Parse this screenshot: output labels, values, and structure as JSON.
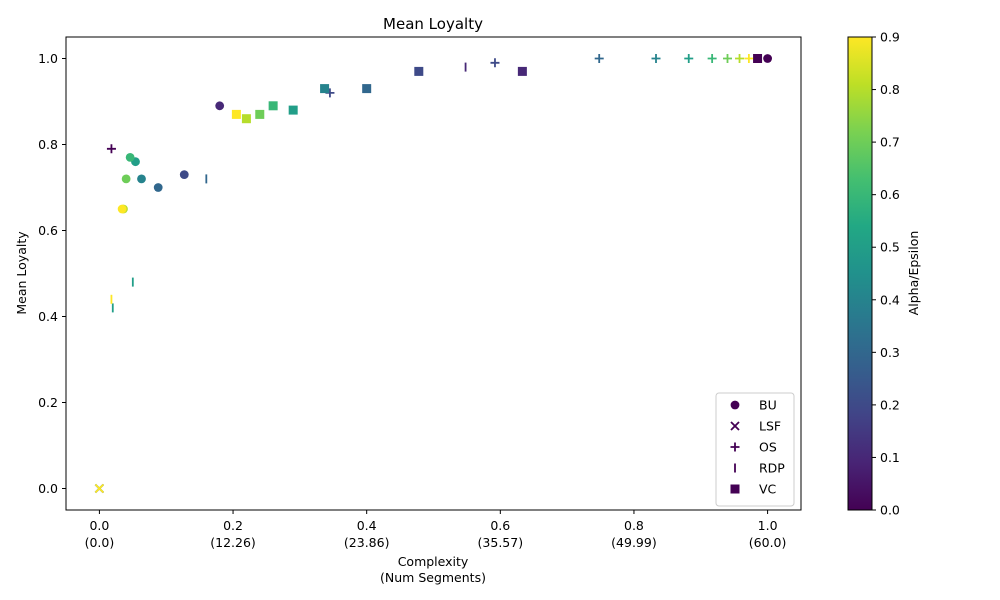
{
  "chart_data": {
    "type": "scatter",
    "title": "Mean Loyalty",
    "xlabel_line1": "Complexity",
    "xlabel_line2": "(Num Segments)",
    "ylabel": "Mean Loyalty",
    "xlim": [
      -0.05,
      1.05
    ],
    "ylim": [
      -0.05,
      1.05
    ],
    "xticks": [
      {
        "value": 0.0,
        "label": "0.0",
        "sub": "(0.0)"
      },
      {
        "value": 0.2,
        "label": "0.2",
        "sub": "(12.26)"
      },
      {
        "value": 0.4,
        "label": "0.4",
        "sub": "(23.86)"
      },
      {
        "value": 0.6,
        "label": "0.6",
        "sub": "(35.57)"
      },
      {
        "value": 0.8,
        "label": "0.8",
        "sub": "(49.99)"
      },
      {
        "value": 1.0,
        "label": "1.0",
        "sub": "(60.0)"
      }
    ],
    "yticks": [
      {
        "value": 0.0,
        "label": "0.0"
      },
      {
        "value": 0.2,
        "label": "0.2"
      },
      {
        "value": 0.4,
        "label": "0.4"
      },
      {
        "value": 0.6,
        "label": "0.6"
      },
      {
        "value": 0.8,
        "label": "0.8"
      },
      {
        "value": 1.0,
        "label": "1.0"
      }
    ],
    "grid": false,
    "legend_position": "lower-right",
    "colormap": "viridis",
    "colorbar": {
      "label": "Alpha/Epsilon",
      "range": [
        0.0,
        0.9
      ],
      "ticks": [
        {
          "value": 0.0,
          "label": "0.0"
        },
        {
          "value": 0.1,
          "label": "0.1"
        },
        {
          "value": 0.2,
          "label": "0.2"
        },
        {
          "value": 0.3,
          "label": "0.3"
        },
        {
          "value": 0.4,
          "label": "0.4"
        },
        {
          "value": 0.5,
          "label": "0.5"
        },
        {
          "value": 0.6,
          "label": "0.6"
        },
        {
          "value": 0.7,
          "label": "0.7"
        },
        {
          "value": 0.8,
          "label": "0.8"
        },
        {
          "value": 0.9,
          "label": "0.9"
        }
      ]
    },
    "series": [
      {
        "name": "BU",
        "marker": "circle",
        "points": [
          {
            "x": 1.0,
            "y": 1.0,
            "c": 0.0
          },
          {
            "x": 0.18,
            "y": 0.89,
            "c": 0.1
          },
          {
            "x": 0.127,
            "y": 0.73,
            "c": 0.2
          },
          {
            "x": 0.088,
            "y": 0.7,
            "c": 0.3
          },
          {
            "x": 0.063,
            "y": 0.72,
            "c": 0.4
          },
          {
            "x": 0.054,
            "y": 0.76,
            "c": 0.5
          },
          {
            "x": 0.046,
            "y": 0.77,
            "c": 0.6
          },
          {
            "x": 0.04,
            "y": 0.72,
            "c": 0.7
          },
          {
            "x": 0.036,
            "y": 0.65,
            "c": 0.8
          },
          {
            "x": 0.034,
            "y": 0.65,
            "c": 0.9
          }
        ]
      },
      {
        "name": "LSF",
        "marker": "x",
        "points": [
          {
            "x": 0.0,
            "y": 0.0,
            "c": 0.0
          },
          {
            "x": 0.0,
            "y": 0.0,
            "c": 0.45
          },
          {
            "x": 0.0,
            "y": 0.0,
            "c": 0.9
          }
        ]
      },
      {
        "name": "OS",
        "marker": "plus",
        "points": [
          {
            "x": 0.018,
            "y": 0.79,
            "c": 0.0
          },
          {
            "x": 0.345,
            "y": 0.92,
            "c": 0.2
          },
          {
            "x": 0.592,
            "y": 0.99,
            "c": 0.2
          },
          {
            "x": 0.748,
            "y": 1.0,
            "c": 0.3
          },
          {
            "x": 0.833,
            "y": 1.0,
            "c": 0.4
          },
          {
            "x": 0.882,
            "y": 1.0,
            "c": 0.5
          },
          {
            "x": 0.917,
            "y": 1.0,
            "c": 0.6
          },
          {
            "x": 0.94,
            "y": 1.0,
            "c": 0.7
          },
          {
            "x": 0.958,
            "y": 1.0,
            "c": 0.8
          },
          {
            "x": 0.972,
            "y": 1.0,
            "c": 0.9
          }
        ]
      },
      {
        "name": "RDP",
        "marker": "vline",
        "points": [
          {
            "x": 0.548,
            "y": 0.98,
            "c": 0.1
          },
          {
            "x": 0.16,
            "y": 0.72,
            "c": 0.3
          },
          {
            "x": 0.05,
            "y": 0.48,
            "c": 0.5
          },
          {
            "x": 0.02,
            "y": 0.42,
            "c": 0.5
          },
          {
            "x": 0.018,
            "y": 0.44,
            "c": 0.9
          }
        ]
      },
      {
        "name": "VC",
        "marker": "square",
        "points": [
          {
            "x": 0.985,
            "y": 1.0,
            "c": 0.0
          },
          {
            "x": 0.633,
            "y": 0.97,
            "c": 0.1
          },
          {
            "x": 0.478,
            "y": 0.97,
            "c": 0.2
          },
          {
            "x": 0.4,
            "y": 0.93,
            "c": 0.3
          },
          {
            "x": 0.337,
            "y": 0.93,
            "c": 0.4
          },
          {
            "x": 0.29,
            "y": 0.88,
            "c": 0.5
          },
          {
            "x": 0.26,
            "y": 0.89,
            "c": 0.6
          },
          {
            "x": 0.24,
            "y": 0.87,
            "c": 0.7
          },
          {
            "x": 0.22,
            "y": 0.86,
            "c": 0.8
          },
          {
            "x": 0.205,
            "y": 0.87,
            "c": 0.9
          }
        ]
      }
    ]
  }
}
